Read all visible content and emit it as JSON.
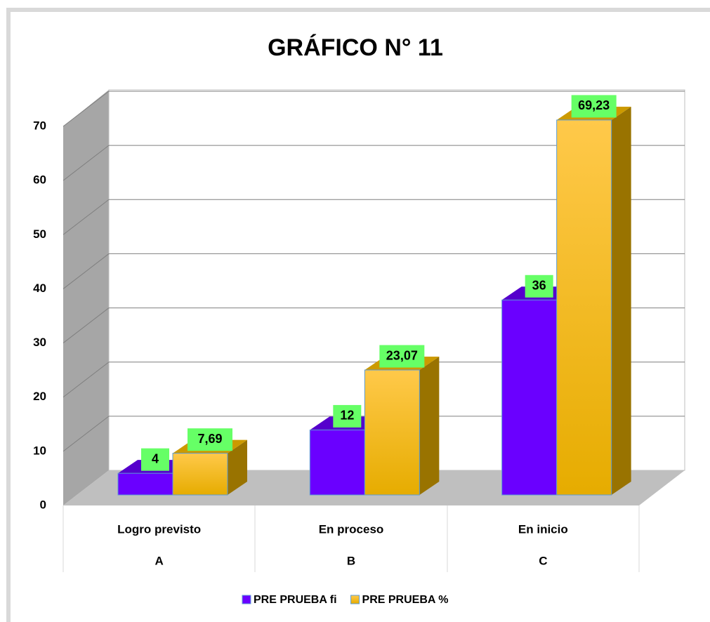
{
  "chart_data": {
    "type": "bar3d",
    "title": "GRÁFICO N° 11",
    "categories": [
      [
        "Logro previsto",
        "A"
      ],
      [
        "En proceso",
        "B"
      ],
      [
        "En inicio",
        "C"
      ]
    ],
    "series": [
      {
        "name": "PRE PRUEBA fi",
        "color": "#6a00ff",
        "values": [
          4,
          12,
          36
        ]
      },
      {
        "name": "PRE PRUEBA %",
        "color": "#ffc000",
        "values": [
          7.69,
          23.07,
          69.23
        ],
        "value_labels": [
          "7,69",
          "23,07",
          "69,23"
        ]
      }
    ],
    "ylim": [
      0,
      70
    ],
    "yticks": [
      0,
      10,
      20,
      30,
      40,
      50,
      60,
      70
    ],
    "grid": true,
    "legend": "bottom"
  }
}
